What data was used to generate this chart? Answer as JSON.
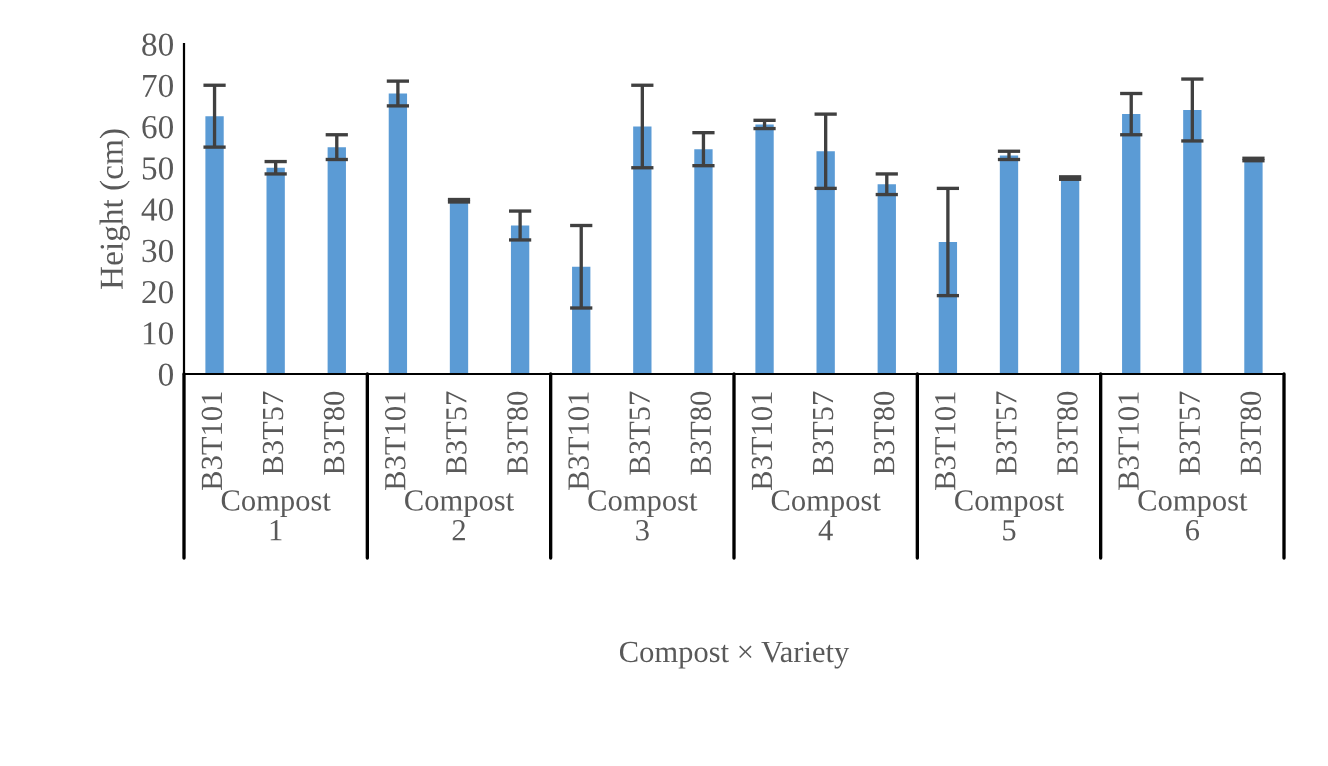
{
  "chart_data": {
    "type": "bar",
    "xlabel": "Compost × Variety",
    "ylabel": "Height (cm)",
    "categories": [
      "B3T101",
      "B3T57",
      "B3T80",
      "B3T101",
      "B3T57",
      "B3T80",
      "B3T101",
      "B3T57",
      "B3T80",
      "B3T101",
      "B3T57",
      "B3T80",
      "B3T101",
      "B3T57",
      "B3T80",
      "B3T101",
      "B3T57",
      "B3T80"
    ],
    "values": [
      62.5,
      50,
      55,
      68,
      42,
      36,
      26,
      60,
      54.5,
      60.5,
      54,
      46,
      32,
      53,
      47.5,
      63,
      64,
      52
    ],
    "errors": [
      7.5,
      1.5,
      3,
      3,
      0.3,
      3.5,
      10,
      10,
      4,
      1,
      9,
      2.5,
      13,
      1,
      0.3,
      5,
      7.5,
      0.3
    ],
    "color": "#5b9bd5",
    "annotations": [
      "Compost\n1",
      "Compost\n2",
      "Compost\n3",
      "Compost\n4",
      "Compost\n5",
      "Compost\n6"
    ],
    "ylim": [
      0,
      80
    ],
    "yticks": [
      0,
      10,
      20,
      30,
      40,
      50,
      60,
      70,
      80
    ],
    "grid": false,
    "legend": false
  }
}
